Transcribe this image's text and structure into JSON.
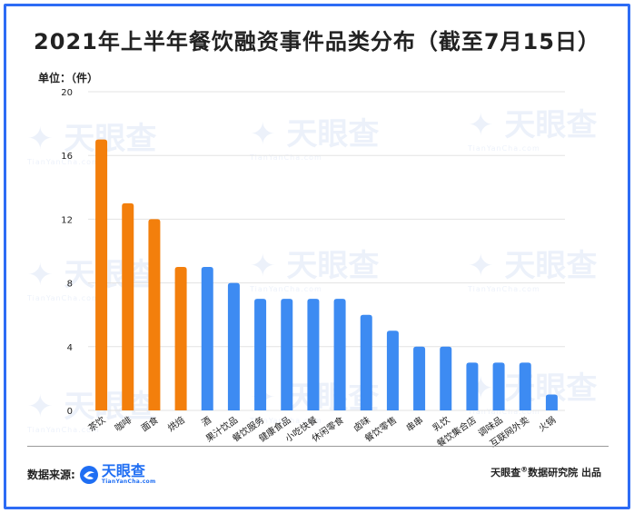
{
  "title": "2021年上半年餐饮融资事件品类分布（截至7月15日）",
  "unit_label": "单位：（件）",
  "footer": {
    "source_label": "数据来源:",
    "logo_cn": "天眼查",
    "logo_en": "TianYanCha.com",
    "credit_prefix": "天眼查",
    "credit_suffix": "数据研究院 出品"
  },
  "watermark": {
    "cn": "天眼查",
    "en": "TianYanCha.com"
  },
  "colors": {
    "highlight": "#f37f0c",
    "normal": "#3d8bf2",
    "frame": "#2d6cf5",
    "grid": "#e3e3e3"
  },
  "chart_data": {
    "type": "bar",
    "title": "2021年上半年餐饮融资事件品类分布（截至7月15日）",
    "ylabel": "单位：（件）",
    "xlabel": "",
    "ylim": [
      0,
      20
    ],
    "yticks": [
      "0",
      "4",
      "8",
      "12",
      "16",
      "20"
    ],
    "grid": true,
    "categories": [
      "茶饮",
      "咖啡",
      "面食",
      "烘焙",
      "酒",
      "果汁饮品",
      "餐饮服务",
      "健康食品",
      "小吃快餐",
      "休闲零食",
      "卤味",
      "餐饮零售",
      "串串",
      "乳饮",
      "餐饮集合店",
      "调味品",
      "互联网外卖",
      "火锅"
    ],
    "values": [
      17,
      13,
      12,
      9,
      9,
      8,
      7,
      7,
      7,
      7,
      6,
      5,
      4,
      4,
      3,
      3,
      3,
      1
    ],
    "highlight_count": 4
  }
}
